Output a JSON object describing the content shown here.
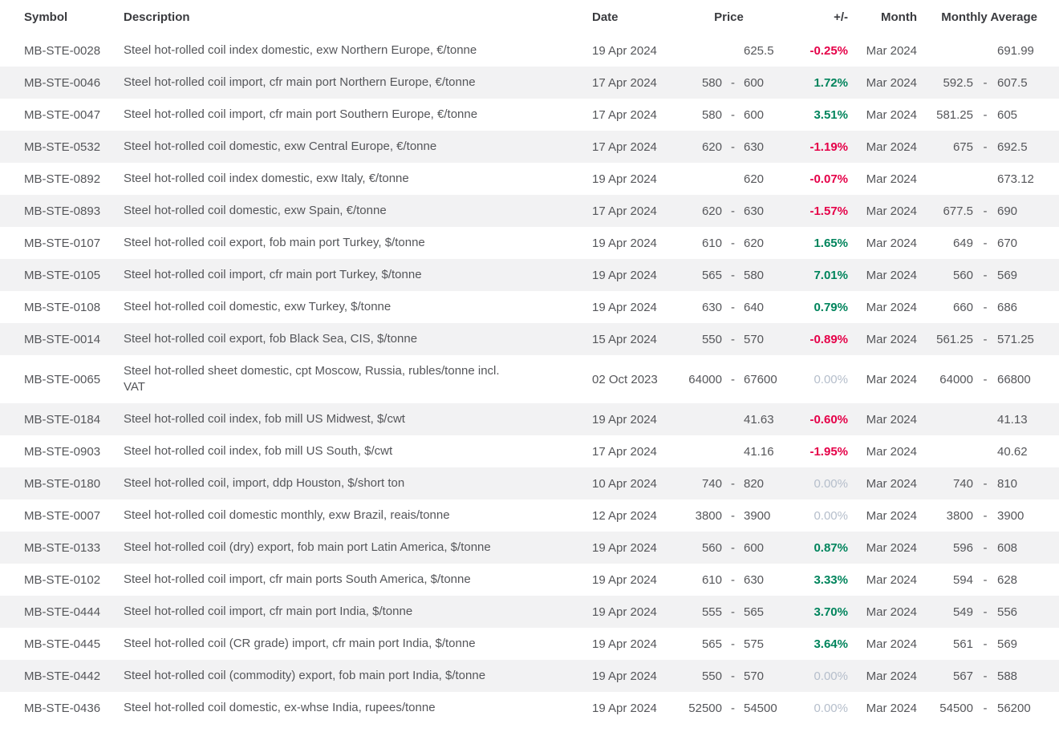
{
  "table": {
    "columns": {
      "symbol": "Symbol",
      "description": "Description",
      "date": "Date",
      "price": "Price",
      "change": "+/-",
      "month": "Month",
      "monthly_average": "Monthly Average"
    },
    "colors": {
      "positive": "#00845c",
      "negative": "#e50048",
      "neutral": "#b5becb",
      "row_stripe": "#f2f2f3",
      "header_text": "#3a3b3f",
      "body_text": "#55565a"
    },
    "rows": [
      {
        "symbol": "MB-STE-0028",
        "description": "Steel hot-rolled coil index domestic, exw Northern Europe, €/tonne",
        "date": "19 Apr 2024",
        "price": {
          "value": "625.5"
        },
        "change": {
          "value": "-0.25%",
          "direction": "down"
        },
        "month": "Mar 2024",
        "avg": {
          "value": "691.99"
        }
      },
      {
        "symbol": "MB-STE-0046",
        "description": "Steel hot-rolled coil import, cfr main port Northern Europe, €/tonne",
        "date": "17 Apr 2024",
        "price": {
          "low": "580",
          "high": "600"
        },
        "change": {
          "value": "1.72%",
          "direction": "up"
        },
        "month": "Mar 2024",
        "avg": {
          "low": "592.5",
          "high": "607.5"
        }
      },
      {
        "symbol": "MB-STE-0047",
        "description": "Steel hot-rolled coil import, cfr main port Southern Europe, €/tonne",
        "date": "17 Apr 2024",
        "price": {
          "low": "580",
          "high": "600"
        },
        "change": {
          "value": "3.51%",
          "direction": "up"
        },
        "month": "Mar 2024",
        "avg": {
          "low": "581.25",
          "high": "605"
        }
      },
      {
        "symbol": "MB-STE-0532",
        "description": "Steel hot-rolled coil domestic, exw Central Europe, €/tonne",
        "date": "17 Apr 2024",
        "price": {
          "low": "620",
          "high": "630"
        },
        "change": {
          "value": "-1.19%",
          "direction": "down"
        },
        "month": "Mar 2024",
        "avg": {
          "low": "675",
          "high": "692.5"
        }
      },
      {
        "symbol": "MB-STE-0892",
        "description": "Steel hot-rolled coil index domestic, exw Italy, €/tonne",
        "date": "19 Apr 2024",
        "price": {
          "value": "620"
        },
        "change": {
          "value": "-0.07%",
          "direction": "down"
        },
        "month": "Mar 2024",
        "avg": {
          "value": "673.12"
        }
      },
      {
        "symbol": "MB-STE-0893",
        "description": "Steel hot-rolled coil domestic, exw Spain, €/tonne",
        "date": "17 Apr 2024",
        "price": {
          "low": "620",
          "high": "630"
        },
        "change": {
          "value": "-1.57%",
          "direction": "down"
        },
        "month": "Mar 2024",
        "avg": {
          "low": "677.5",
          "high": "690"
        }
      },
      {
        "symbol": "MB-STE-0107",
        "description": "Steel hot-rolled coil export, fob main port Turkey, $/tonne",
        "date": "19 Apr 2024",
        "price": {
          "low": "610",
          "high": "620"
        },
        "change": {
          "value": "1.65%",
          "direction": "up"
        },
        "month": "Mar 2024",
        "avg": {
          "low": "649",
          "high": "670"
        }
      },
      {
        "symbol": "MB-STE-0105",
        "description": "Steel hot-rolled coil import, cfr main port Turkey, $/tonne",
        "date": "19 Apr 2024",
        "price": {
          "low": "565",
          "high": "580"
        },
        "change": {
          "value": "7.01%",
          "direction": "up"
        },
        "month": "Mar 2024",
        "avg": {
          "low": "560",
          "high": "569"
        }
      },
      {
        "symbol": "MB-STE-0108",
        "description": "Steel hot-rolled coil domestic, exw Turkey, $/tonne",
        "date": "19 Apr 2024",
        "price": {
          "low": "630",
          "high": "640"
        },
        "change": {
          "value": "0.79%",
          "direction": "up"
        },
        "month": "Mar 2024",
        "avg": {
          "low": "660",
          "high": "686"
        }
      },
      {
        "symbol": "MB-STE-0014",
        "description": "Steel hot-rolled coil export, fob Black Sea, CIS, $/tonne",
        "date": "15 Apr 2024",
        "price": {
          "low": "550",
          "high": "570"
        },
        "change": {
          "value": "-0.89%",
          "direction": "down"
        },
        "month": "Mar 2024",
        "avg": {
          "low": "561.25",
          "high": "571.25"
        }
      },
      {
        "symbol": "MB-STE-0065",
        "description": "Steel hot-rolled sheet domestic, cpt Moscow, Russia, rubles/tonne incl. VAT",
        "date": "02 Oct 2023",
        "price": {
          "low": "64000",
          "high": "67600"
        },
        "change": {
          "value": "0.00%",
          "direction": "flat"
        },
        "month": "Mar 2024",
        "avg": {
          "low": "64000",
          "high": "66800"
        }
      },
      {
        "symbol": "MB-STE-0184",
        "description": "Steel hot-rolled coil index, fob mill US Midwest, $/cwt",
        "date": "19 Apr 2024",
        "price": {
          "value": "41.63"
        },
        "change": {
          "value": "-0.60%",
          "direction": "down"
        },
        "month": "Mar 2024",
        "avg": {
          "value": "41.13"
        }
      },
      {
        "symbol": "MB-STE-0903",
        "description": "Steel hot-rolled coil index, fob mill US South, $/cwt",
        "date": "17 Apr 2024",
        "price": {
          "value": "41.16"
        },
        "change": {
          "value": "-1.95%",
          "direction": "down"
        },
        "month": "Mar 2024",
        "avg": {
          "value": "40.62"
        }
      },
      {
        "symbol": "MB-STE-0180",
        "description": "Steel hot-rolled coil, import, ddp Houston, $/short ton",
        "date": "10 Apr 2024",
        "price": {
          "low": "740",
          "high": "820"
        },
        "change": {
          "value": "0.00%",
          "direction": "flat"
        },
        "month": "Mar 2024",
        "avg": {
          "low": "740",
          "high": "810"
        }
      },
      {
        "symbol": "MB-STE-0007",
        "description": "Steel hot-rolled coil domestic monthly, exw Brazil, reais/tonne",
        "date": "12 Apr 2024",
        "price": {
          "low": "3800",
          "high": "3900"
        },
        "change": {
          "value": "0.00%",
          "direction": "flat"
        },
        "month": "Mar 2024",
        "avg": {
          "low": "3800",
          "high": "3900"
        }
      },
      {
        "symbol": "MB-STE-0133",
        "description": "Steel hot-rolled coil (dry) export, fob main port Latin America, $/tonne",
        "date": "19 Apr 2024",
        "price": {
          "low": "560",
          "high": "600"
        },
        "change": {
          "value": "0.87%",
          "direction": "up"
        },
        "month": "Mar 2024",
        "avg": {
          "low": "596",
          "high": "608"
        }
      },
      {
        "symbol": "MB-STE-0102",
        "description": "Steel hot-rolled coil import, cfr main ports South America, $/tonne",
        "date": "19 Apr 2024",
        "price": {
          "low": "610",
          "high": "630"
        },
        "change": {
          "value": "3.33%",
          "direction": "up"
        },
        "month": "Mar 2024",
        "avg": {
          "low": "594",
          "high": "628"
        }
      },
      {
        "symbol": "MB-STE-0444",
        "description": "Steel hot-rolled coil import, cfr main port India, $/tonne",
        "date": "19 Apr 2024",
        "price": {
          "low": "555",
          "high": "565"
        },
        "change": {
          "value": "3.70%",
          "direction": "up"
        },
        "month": "Mar 2024",
        "avg": {
          "low": "549",
          "high": "556"
        }
      },
      {
        "symbol": "MB-STE-0445",
        "description": "Steel hot-rolled coil (CR grade) import, cfr main port India, $/tonne",
        "date": "19 Apr 2024",
        "price": {
          "low": "565",
          "high": "575"
        },
        "change": {
          "value": "3.64%",
          "direction": "up"
        },
        "month": "Mar 2024",
        "avg": {
          "low": "561",
          "high": "569"
        }
      },
      {
        "symbol": "MB-STE-0442",
        "description": "Steel hot-rolled coil (commodity) export, fob main port India, $/tonne",
        "date": "19 Apr 2024",
        "price": {
          "low": "550",
          "high": "570"
        },
        "change": {
          "value": "0.00%",
          "direction": "flat"
        },
        "month": "Mar 2024",
        "avg": {
          "low": "567",
          "high": "588"
        }
      },
      {
        "symbol": "MB-STE-0436",
        "description": "Steel hot-rolled coil domestic, ex-whse India, rupees/tonne",
        "date": "19 Apr 2024",
        "price": {
          "low": "52500",
          "high": "54500"
        },
        "change": {
          "value": "0.00%",
          "direction": "flat"
        },
        "month": "Mar 2024",
        "avg": {
          "low": "54500",
          "high": "56200"
        }
      }
    ]
  }
}
